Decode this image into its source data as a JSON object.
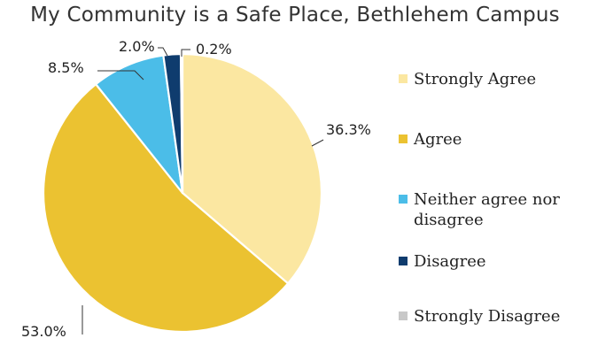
{
  "chart_data": {
    "type": "pie",
    "title": "My Community is a Safe Place, Bethlehem Campus",
    "categories": [
      "Strongly Agree",
      "Agree",
      "Neither agree nor disagree",
      "Disagree",
      "Strongly Disagree"
    ],
    "legend_lines": [
      [
        "Strongly Agree"
      ],
      [
        "Agree"
      ],
      [
        "Neither agree nor",
        "disagree"
      ],
      [
        "Disagree"
      ],
      [
        "Strongly Disagree"
      ]
    ],
    "values": [
      36.3,
      53.0,
      8.5,
      2.0,
      0.2
    ],
    "value_labels": [
      "36.3%",
      "53.0%",
      "8.5%",
      "2.0%",
      "0.2%"
    ],
    "colors": [
      "#FBE7A1",
      "#EBC231",
      "#4BBDE8",
      "#0F3C6E",
      "#C8C8C8"
    ],
    "start_angle_deg": 0,
    "direction": "clockwise",
    "legend_position": "right"
  }
}
